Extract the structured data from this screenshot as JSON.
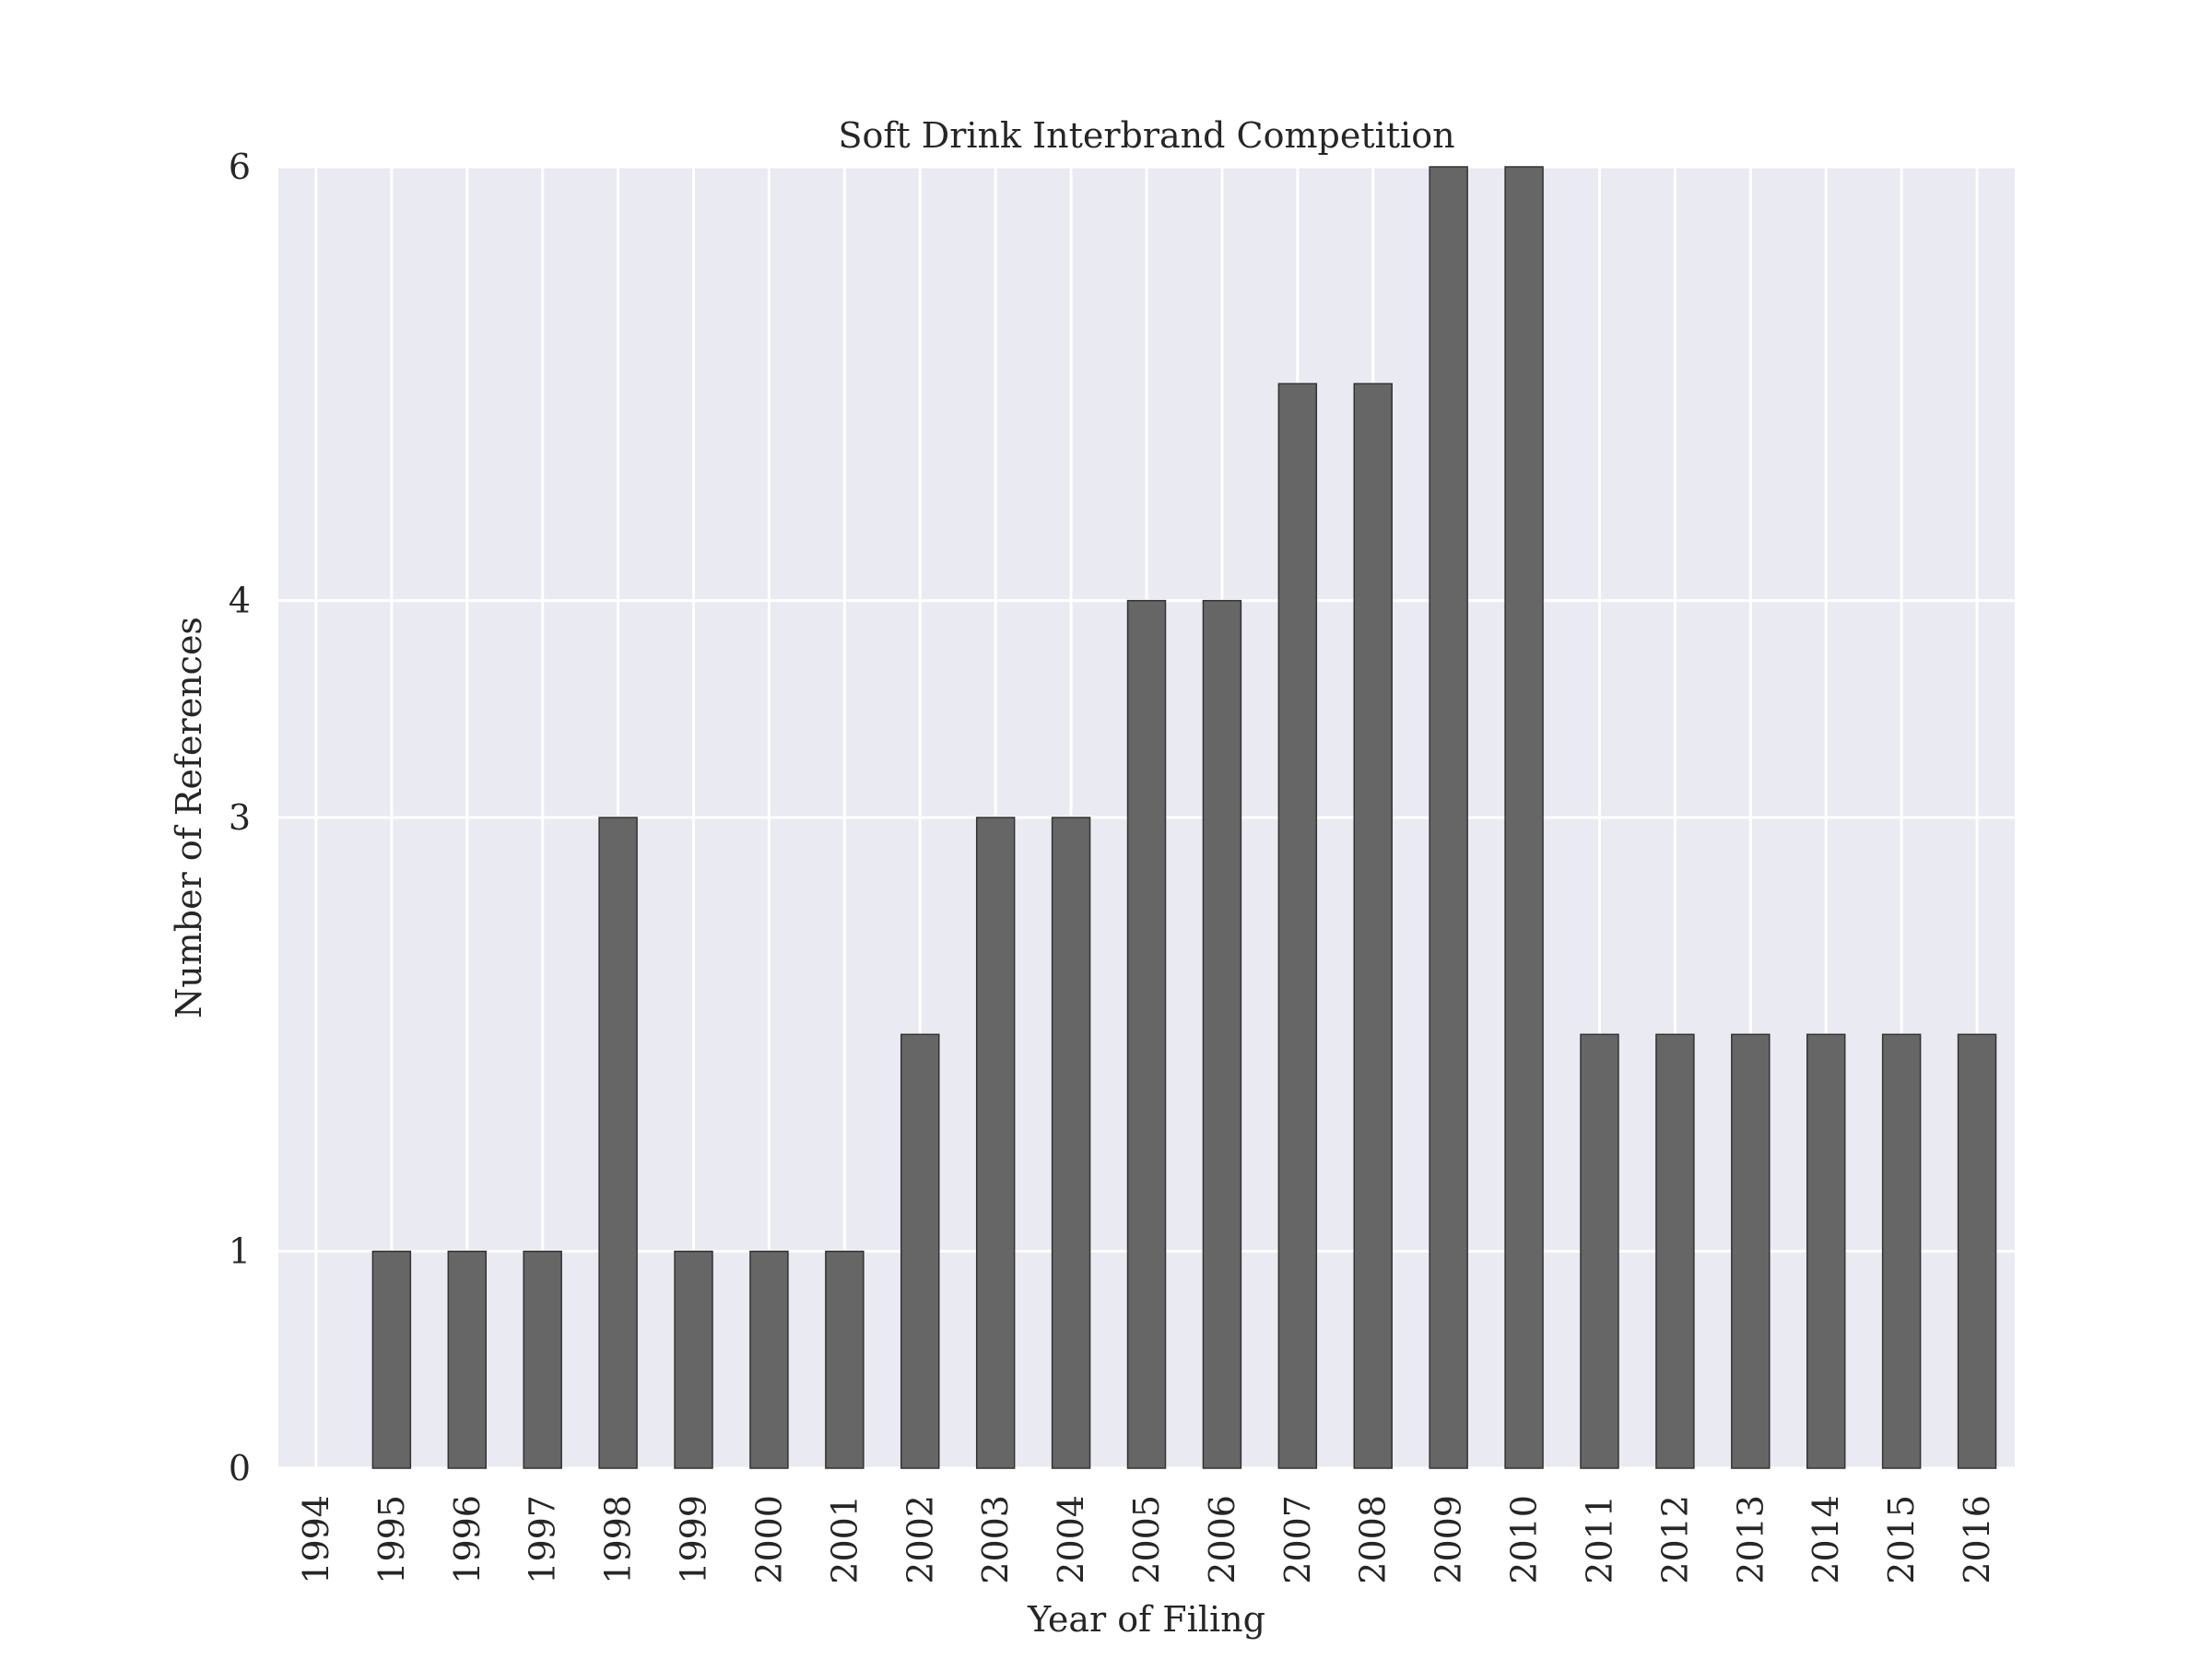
{
  "chart_data": {
    "type": "bar",
    "title": "Soft Drink Interbrand Competition",
    "xlabel": "Year of Filing",
    "ylabel": "Number of References",
    "categories": [
      "1994",
      "1995",
      "1996",
      "1997",
      "1998",
      "1999",
      "2000",
      "2001",
      "2002",
      "2003",
      "2004",
      "2005",
      "2006",
      "2007",
      "2008",
      "2009",
      "2010",
      "2011",
      "2012",
      "2013",
      "2014",
      "2015",
      "2016"
    ],
    "values": [
      0,
      1,
      1,
      1,
      3,
      1,
      1,
      1,
      2,
      3,
      3,
      4,
      4,
      5,
      5,
      6,
      6,
      2,
      2,
      2,
      2,
      2,
      2
    ],
    "ylim": [
      0,
      6
    ],
    "yticks": [
      0,
      1,
      3,
      4,
      6
    ],
    "grid": true,
    "colors": {
      "background": "#eaeaf2",
      "grid": "#ffffff",
      "bar": "#666666",
      "bar_edge": "#333333"
    }
  }
}
